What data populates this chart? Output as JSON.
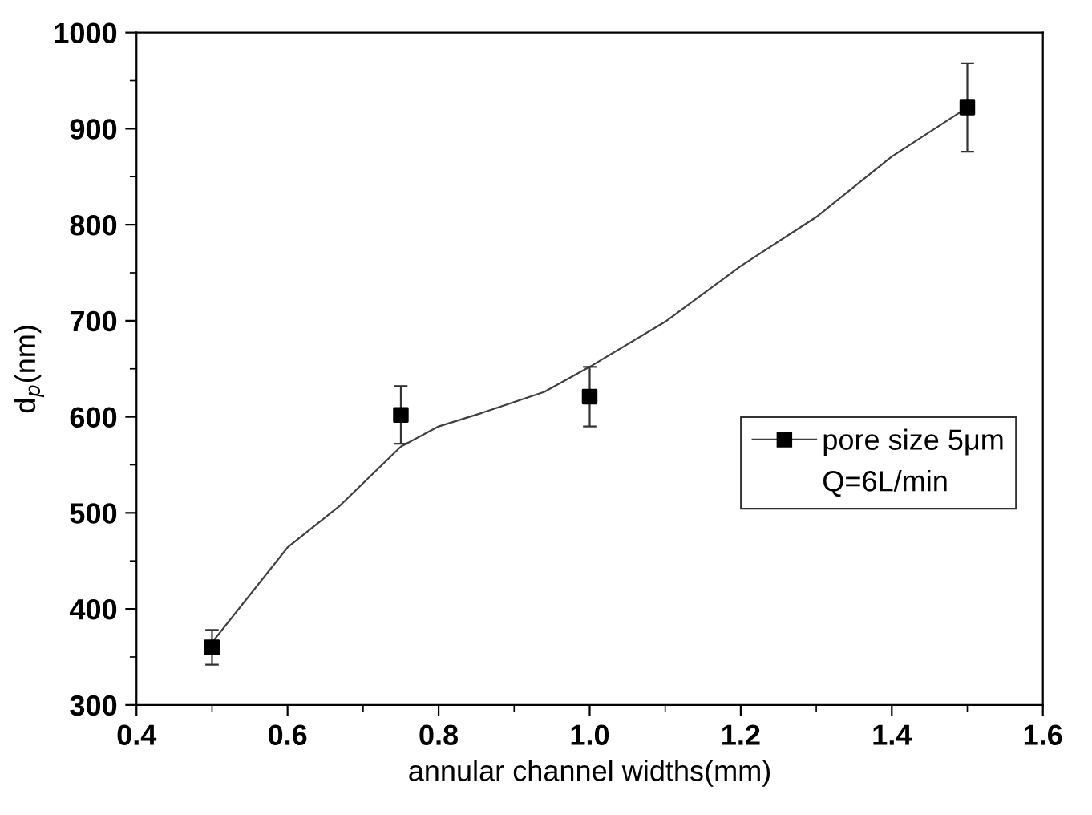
{
  "chart_data": {
    "type": "scatter",
    "xlabel": "annular channel widths(mm)",
    "ylabel": "d$_{p}$(nm)",
    "x": [
      0.5,
      0.75,
      1.0,
      1.5
    ],
    "series": [
      {
        "name": "pore size 5μm",
        "color": "#000000",
        "marker": "square",
        "values": [
          360,
          602,
          621,
          922
        ],
        "errors": [
          18,
          30,
          31,
          46
        ]
      },
      {
        "type": "line",
        "color": "#404040",
        "line_style": "solid",
        "x": [
          0.5,
          0.6,
          0.67,
          0.75,
          0.8,
          0.857,
          0.94,
          1.0,
          1.1,
          1.2,
          1.3,
          1.4,
          1.5
        ],
        "values": [
          365,
          464,
          508,
          569,
          590,
          604,
          626,
          652,
          699,
          757,
          808,
          871,
          922
        ]
      }
    ],
    "annotations": [
      "Q=6L/min"
    ],
    "xlim": [
      0.4,
      1.6
    ],
    "xticks": [
      0.4,
      0.6,
      0.8,
      {
        "value": 1,
        "label": "1.0"
      },
      1.2,
      1.4,
      1.6
    ],
    "ylim": [
      300,
      1000
    ],
    "yticks": [
      300,
      400,
      500,
      600,
      700,
      800,
      900,
      1000
    ],
    "grid": false,
    "legend": "right"
  }
}
